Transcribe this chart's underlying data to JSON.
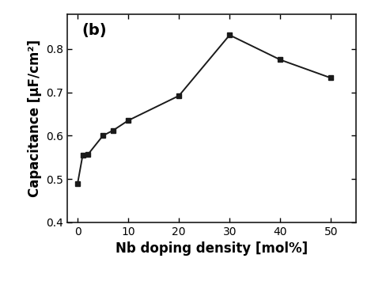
{
  "x": [
    0,
    1,
    2,
    5,
    7,
    10,
    20,
    30,
    40,
    50
  ],
  "y": [
    0.49,
    0.555,
    0.556,
    0.6,
    0.612,
    0.635,
    0.692,
    0.832,
    0.775,
    0.733
  ],
  "xlabel": "Nb doping density [mol%]",
  "ylabel": "Capacitance [μF/cm²]",
  "annotation": "(b)",
  "xlim": [
    -2,
    55
  ],
  "ylim": [
    0.4,
    0.88
  ],
  "xticks": [
    0,
    10,
    20,
    30,
    40,
    50
  ],
  "yticks": [
    0.4,
    0.5,
    0.6,
    0.7,
    0.8
  ],
  "line_color": "#1a1a1a",
  "marker": "s",
  "marker_size": 5,
  "marker_facecolor": "#1a1a1a",
  "linewidth": 1.4,
  "label_fontsize": 12,
  "tick_fontsize": 10,
  "annotation_fontsize": 14,
  "background_color": "#ffffff"
}
